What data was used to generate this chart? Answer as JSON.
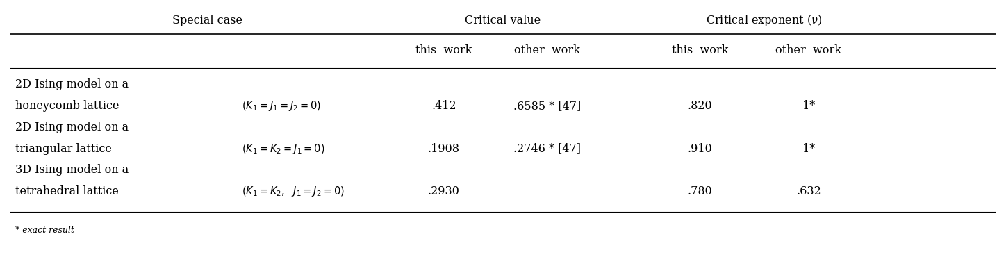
{
  "col_headers_top": [
    "Special case",
    "Critical value",
    "Critical exponent (ν)"
  ],
  "col_headers_sub": [
    "this  work",
    "other  work",
    "this  work",
    "other  work"
  ],
  "rows": [
    {
      "line1": "2D Ising model on a",
      "line2": "honeycomb lattice",
      "cond_idx": 0,
      "this_work_cv": ".412",
      "other_work_cv": ".6585 * [47]",
      "this_work_ce": ".820",
      "other_work_ce": "1*"
    },
    {
      "line1": "2D Ising model on a",
      "line2": "triangular lattice",
      "cond_idx": 1,
      "this_work_cv": ".1908",
      "other_work_cv": ".2746 * [47]",
      "this_work_ce": ".910",
      "other_work_ce": "1*"
    },
    {
      "line1": "3D Ising model on a",
      "line2": "tetrahedral lattice",
      "cond_idx": 2,
      "this_work_cv": ".2930",
      "other_work_cv": "",
      "this_work_ce": ".780",
      "other_work_ce": ".632"
    }
  ],
  "footnote": "* exact result",
  "bg_color": "#ffffff",
  "text_color": "#000000",
  "line_color": "#000000"
}
